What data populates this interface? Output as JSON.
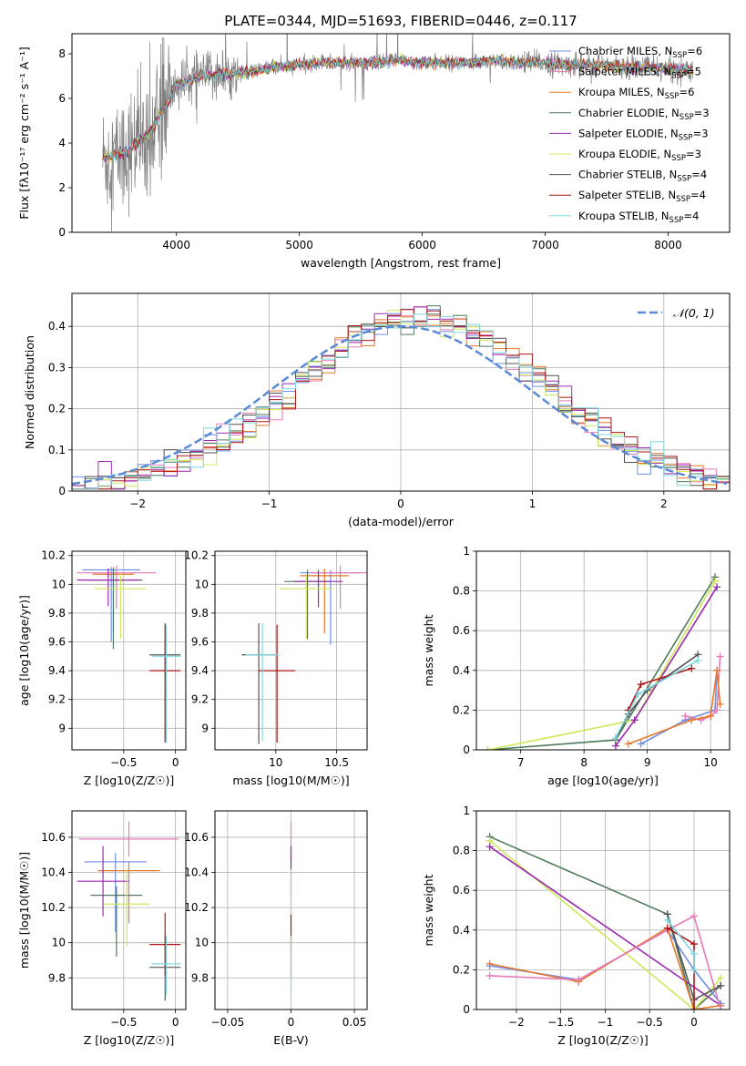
{
  "figure": {
    "title": "PLATE=0344, MJD=51693, FIBERID=0446, z=0.117"
  },
  "models": [
    {
      "name": "Chabrier MILES",
      "nssp": "6",
      "color": "#6f8fe8"
    },
    {
      "name": "Salpeter MILES",
      "nssp": "5",
      "color": "#e879b8"
    },
    {
      "name": "Kroupa MILES",
      "nssp": "6",
      "color": "#e8782a"
    },
    {
      "name": "Chabrier ELODIE",
      "nssp": "3",
      "color": "#4e7a5a"
    },
    {
      "name": "Salpeter ELODIE",
      "nssp": "3",
      "color": "#9a2ab0"
    },
    {
      "name": "Kroupa ELODIE",
      "nssp": "3",
      "color": "#cfe85a"
    },
    {
      "name": "Chabrier STELIB",
      "nssp": "4",
      "color": "#555555"
    },
    {
      "name": "Salpeter STELIB",
      "nssp": "4",
      "color": "#b01515"
    },
    {
      "name": "Kroupa STELIB",
      "nssp": "4",
      "color": "#7fd8e0"
    }
  ],
  "chart_data": [
    {
      "id": "spectrum",
      "type": "line",
      "xlabel": "wavelength [Angstrom, rest frame]",
      "ylabel": "Flux [fλ10⁻¹⁷ erg cm⁻² s⁻¹ A⁻¹]",
      "xlim": [
        3150,
        8500
      ],
      "ylim": [
        0,
        8.9
      ],
      "xticks": [
        4000,
        5000,
        6000,
        7000,
        8000
      ],
      "yticks": [
        0,
        2,
        4,
        6,
        8
      ],
      "legend": "upper right",
      "grid": false,
      "series_note": "data (grey) and 9 model fits",
      "continuum_x": [
        3400,
        3600,
        3800,
        4000,
        4200,
        4400,
        4600,
        4800,
        5000,
        5200,
        5400,
        5600,
        5800,
        6000,
        6200,
        6400,
        6600,
        6800,
        7000,
        7200,
        7400,
        7600,
        7800,
        8000,
        8200
      ],
      "continuum_y": [
        3.3,
        3.6,
        4.6,
        6.6,
        7.0,
        7.1,
        7.2,
        7.4,
        7.5,
        7.6,
        7.6,
        7.6,
        7.7,
        7.6,
        7.6,
        7.6,
        7.7,
        7.6,
        7.6,
        7.5,
        7.5,
        7.4,
        7.4,
        7.3,
        7.3
      ]
    },
    {
      "id": "residuals",
      "type": "histogram",
      "xlabel": "(data-model)/error",
      "ylabel": "Normed distribution",
      "xlim": [
        -2.5,
        2.5
      ],
      "ylim": [
        0,
        0.48
      ],
      "xticks": [
        -2,
        -1,
        0,
        1,
        2
      ],
      "yticks": [
        0.0,
        0.1,
        0.2,
        0.3,
        0.4
      ],
      "grid": true,
      "reference_curve": {
        "label": "𝒩(0, 1)",
        "mean": 0,
        "sigma": 1,
        "peak": 0.4
      },
      "bin_width": 0.1,
      "envelope_center": 0.15,
      "envelope_sigma": 0.95
    },
    {
      "id": "age_vs_Z",
      "type": "errorbar",
      "xlabel": "Z [log10(Z/Z☉)]",
      "ylabel": "age  [log10(age/yr)]",
      "xlim": [
        -1.0,
        0.1
      ],
      "ylim": [
        8.85,
        10.23
      ],
      "xticks": [
        -0.5,
        0.0
      ],
      "yticks": [
        9.0,
        9.2,
        9.4,
        9.6,
        9.8,
        10.0,
        10.2
      ],
      "grid": true,
      "points": [
        {
          "model": 0,
          "x": -0.62,
          "xerr": [
            0.28,
            0.28
          ],
          "y": 10.1,
          "yerr": [
            0.5,
            0.02
          ]
        },
        {
          "model": 1,
          "x": -0.57,
          "xerr": [
            0.38,
            0.38
          ],
          "y": 10.08,
          "yerr": [
            0.25,
            0.05
          ]
        },
        {
          "model": 2,
          "x": -0.6,
          "xerr": [
            0.2,
            0.2
          ],
          "y": 10.07,
          "yerr": [
            0.4,
            0.05
          ]
        },
        {
          "model": 3,
          "x": -0.6,
          "xerr": [
            0.28,
            0.28
          ],
          "y": 10.03,
          "yerr": [
            0.48,
            0.08
          ]
        },
        {
          "model": 4,
          "x": -0.65,
          "xerr": [
            0.3,
            0.3
          ],
          "y": 10.03,
          "yerr": [
            0.18,
            0.08
          ]
        },
        {
          "model": 5,
          "x": -0.53,
          "xerr": [
            0.25,
            0.25
          ],
          "y": 9.97,
          "yerr": [
            0.35,
            0.1
          ]
        },
        {
          "model": 6,
          "x": -0.1,
          "xerr": [
            0.15,
            0.15
          ],
          "y": 9.51,
          "yerr": [
            0.59,
            0.22
          ]
        },
        {
          "model": 7,
          "x": -0.1,
          "xerr": [
            0.15,
            0.15
          ],
          "y": 9.4,
          "yerr": [
            0.5,
            0.32
          ]
        },
        {
          "model": 8,
          "x": -0.09,
          "xerr": [
            0.14,
            0.14
          ],
          "y": 9.5,
          "yerr": [
            0.6,
            0.22
          ]
        }
      ]
    },
    {
      "id": "age_vs_mass",
      "type": "errorbar",
      "xlabel": "mass [log10(M/M☉)]",
      "ylabel": "",
      "xlim": [
        9.5,
        10.75
      ],
      "ylim": [
        8.85,
        10.23
      ],
      "xticks": [
        10.0,
        10.5
      ],
      "yticks": [
        9.0,
        9.2,
        9.4,
        9.6,
        9.8,
        10.0,
        10.2
      ],
      "grid": true,
      "points": [
        {
          "model": 0,
          "x": 10.45,
          "xerr": [
            0.25,
            0.25
          ],
          "y": 10.08,
          "yerr": [
            0.5,
            0.02
          ]
        },
        {
          "model": 1,
          "x": 10.53,
          "xerr": [
            0.25,
            0.25
          ],
          "y": 10.08,
          "yerr": [
            0.25,
            0.05
          ]
        },
        {
          "model": 2,
          "x": 10.4,
          "xerr": [
            0.2,
            0.2
          ],
          "y": 10.06,
          "yerr": [
            0.4,
            0.05
          ]
        },
        {
          "model": 3,
          "x": 10.26,
          "xerr": [
            0.19,
            0.19
          ],
          "y": 10.02,
          "yerr": [
            0.4,
            0.08
          ]
        },
        {
          "model": 4,
          "x": 10.35,
          "xerr": [
            0.2,
            0.2
          ],
          "y": 10.02,
          "yerr": [
            0.18,
            0.08
          ]
        },
        {
          "model": 5,
          "x": 10.25,
          "xerr": [
            0.22,
            0.22
          ],
          "y": 9.97,
          "yerr": [
            0.35,
            0.1
          ]
        },
        {
          "model": 6,
          "x": 9.86,
          "xerr": [
            0.14,
            0.14
          ],
          "y": 9.51,
          "yerr": [
            0.62,
            0.22
          ]
        },
        {
          "model": 7,
          "x": 10.01,
          "xerr": [
            0.15,
            0.15
          ],
          "y": 9.4,
          "yerr": [
            0.5,
            0.32
          ]
        },
        {
          "model": 8,
          "x": 9.89,
          "xerr": [
            0.14,
            0.14
          ],
          "y": 9.51,
          "yerr": [
            0.6,
            0.22
          ]
        }
      ]
    },
    {
      "id": "mass_weight_vs_age",
      "type": "line",
      "xlabel": "age  [log10(age/yr)]",
      "ylabel": "mass weight",
      "xlim": [
        6.3,
        10.3
      ],
      "ylim": [
        0,
        1.0
      ],
      "xticks": [
        7,
        8,
        9,
        10
      ],
      "yticks": [
        0.0,
        0.2,
        0.4,
        0.6,
        0.8,
        1.0
      ],
      "grid": true,
      "series": [
        {
          "model": 3,
          "x": [
            6.48,
            8.5,
            10.07
          ],
          "y": [
            0.0,
            0.05,
            0.87
          ]
        },
        {
          "model": 5,
          "x": [
            6.48,
            8.8,
            10.07
          ],
          "y": [
            0.0,
            0.15,
            0.85
          ]
        },
        {
          "model": 4,
          "x": [
            8.5,
            8.8,
            10.1
          ],
          "y": [
            0.02,
            0.15,
            0.82
          ]
        },
        {
          "model": 6,
          "x": [
            8.5,
            8.7,
            9.0,
            9.8
          ],
          "y": [
            0.05,
            0.18,
            0.3,
            0.48
          ]
        },
        {
          "model": 7,
          "x": [
            8.7,
            8.9,
            9.7
          ],
          "y": [
            0.2,
            0.33,
            0.41
          ]
        },
        {
          "model": 8,
          "x": [
            8.5,
            8.85,
            9.8
          ],
          "y": [
            0.06,
            0.28,
            0.45
          ]
        },
        {
          "model": 0,
          "x": [
            8.9,
            9.6,
            10.07,
            10.1
          ],
          "y": [
            0.03,
            0.15,
            0.2,
            0.4
          ]
        },
        {
          "model": 1,
          "x": [
            9.6,
            9.85,
            10.0,
            10.1,
            10.15
          ],
          "y": [
            0.17,
            0.15,
            0.17,
            0.2,
            0.47
          ]
        },
        {
          "model": 2,
          "x": [
            8.7,
            9.7,
            10.0,
            10.1,
            10.15
          ],
          "y": [
            0.03,
            0.15,
            0.17,
            0.4,
            0.23
          ]
        }
      ]
    },
    {
      "id": "mass_vs_Z",
      "type": "errorbar",
      "xlabel": "Z [log10(Z/Z☉)]",
      "ylabel": "mass [log10(M/M☉)]",
      "xlim": [
        -1.0,
        0.1
      ],
      "ylim": [
        9.62,
        10.75
      ],
      "xticks": [
        -0.5,
        0.0
      ],
      "yticks": [
        9.8,
        10.0,
        10.2,
        10.4,
        10.6
      ],
      "grid": true,
      "points": [
        {
          "model": 0,
          "x": -0.58,
          "xerr": [
            0.3,
            0.3
          ],
          "y": 10.46,
          "yerr": [
            0.4,
            0.05
          ]
        },
        {
          "model": 1,
          "x": -0.45,
          "xerr": [
            0.48,
            0.48
          ],
          "y": 10.59,
          "yerr": [
            0.1,
            0.1
          ]
        },
        {
          "model": 2,
          "x": -0.45,
          "xerr": [
            0.3,
            0.3
          ],
          "y": 10.41,
          "yerr": [
            0.3,
            0.05
          ]
        },
        {
          "model": 3,
          "x": -0.57,
          "xerr": [
            0.25,
            0.25
          ],
          "y": 10.27,
          "yerr": [
            0.35,
            0.05
          ]
        },
        {
          "model": 4,
          "x": -0.7,
          "xerr": [
            0.25,
            0.25
          ],
          "y": 10.35,
          "yerr": [
            0.2,
            0.2
          ]
        },
        {
          "model": 5,
          "x": -0.47,
          "xerr": [
            0.22,
            0.22
          ],
          "y": 10.22,
          "yerr": [
            0.24,
            0.2
          ]
        },
        {
          "model": 6,
          "x": -0.1,
          "xerr": [
            0.15,
            0.15
          ],
          "y": 9.86,
          "yerr": [
            0.19,
            0.18
          ]
        },
        {
          "model": 7,
          "x": -0.1,
          "xerr": [
            0.15,
            0.15
          ],
          "y": 9.99,
          "yerr": [
            0.18,
            0.18
          ]
        },
        {
          "model": 8,
          "x": -0.09,
          "xerr": [
            0.14,
            0.14
          ],
          "y": 9.88,
          "yerr": [
            0.18,
            0.16
          ]
        }
      ]
    },
    {
      "id": "mass_vs_ebv",
      "type": "errorbar",
      "xlabel": "E(B-V)",
      "ylabel": "",
      "xlim": [
        -0.06,
        0.06
      ],
      "ylim": [
        9.62,
        10.75
      ],
      "xticks": [
        -0.05,
        0.0,
        0.05
      ],
      "yticks": [
        9.8,
        10.0,
        10.2,
        10.4,
        10.6
      ],
      "grid": true,
      "points": [
        {
          "model": 1,
          "x": 0.0,
          "xerr": [
            0,
            0
          ],
          "y": 10.59,
          "yerr": [
            0.12,
            0.1
          ]
        },
        {
          "model": 0,
          "x": 0.0,
          "xerr": [
            0,
            0
          ],
          "y": 10.46,
          "yerr": [
            0.2,
            0.05
          ]
        },
        {
          "model": 4,
          "x": 0.0,
          "xerr": [
            0,
            0
          ],
          "y": 10.35,
          "yerr": [
            0.2,
            0.2
          ]
        },
        {
          "model": 5,
          "x": 0.0,
          "xerr": [
            0,
            0
          ],
          "y": 10.22,
          "yerr": [
            0.25,
            0.2
          ]
        },
        {
          "model": 7,
          "x": 0.0,
          "xerr": [
            0,
            0
          ],
          "y": 9.99,
          "yerr": [
            0.18,
            0.17
          ]
        },
        {
          "model": 8,
          "x": 0.0,
          "xerr": [
            0,
            0
          ],
          "y": 9.88,
          "yerr": [
            0.16,
            0.16
          ]
        }
      ]
    },
    {
      "id": "mass_weight_vs_Z",
      "type": "line",
      "xlabel": "Z [log10(Z/Z☉)]",
      "ylabel": "mass weight",
      "xlim": [
        -2.45,
        0.4
      ],
      "ylim": [
        0,
        1.0
      ],
      "xticks": [
        -2.0,
        -1.5,
        -1.0,
        -0.5,
        0.0
      ],
      "yticks": [
        0.0,
        0.2,
        0.4,
        0.6,
        0.8,
        1.0
      ],
      "grid": true,
      "series": [
        {
          "model": 3,
          "x": [
            -2.3,
            -0.3,
            0.0,
            0.3
          ],
          "y": [
            0.87,
            0.48,
            0.0,
            0.12
          ]
        },
        {
          "model": 5,
          "x": [
            -2.3,
            0.0,
            0.3
          ],
          "y": [
            0.85,
            0.0,
            0.16
          ]
        },
        {
          "model": 4,
          "x": [
            -2.3,
            0.3
          ],
          "y": [
            0.82,
            0.02
          ]
        },
        {
          "model": 0,
          "x": [
            -2.3,
            -1.3,
            -0.3,
            0.0,
            0.3
          ],
          "y": [
            0.22,
            0.15,
            0.4,
            0.2,
            0.03
          ]
        },
        {
          "model": 2,
          "x": [
            -2.3,
            -1.3,
            -0.3,
            0.0,
            0.3
          ],
          "y": [
            0.23,
            0.14,
            0.41,
            0.0,
            0.02
          ]
        },
        {
          "model": 1,
          "x": [
            -2.3,
            -1.3,
            -0.3,
            0.0,
            0.3
          ],
          "y": [
            0.17,
            0.15,
            0.4,
            0.47,
            0.0
          ]
        },
        {
          "model": 6,
          "x": [
            -0.3,
            0.0,
            0.3
          ],
          "y": [
            0.48,
            0.05,
            0.12
          ]
        },
        {
          "model": 7,
          "x": [
            -0.3,
            0.0,
            0.0
          ],
          "y": [
            0.41,
            0.33,
            0.0
          ]
        },
        {
          "model": 8,
          "x": [
            -0.3,
            0.0,
            0.0
          ],
          "y": [
            0.45,
            0.28,
            0.2
          ]
        }
      ]
    }
  ]
}
